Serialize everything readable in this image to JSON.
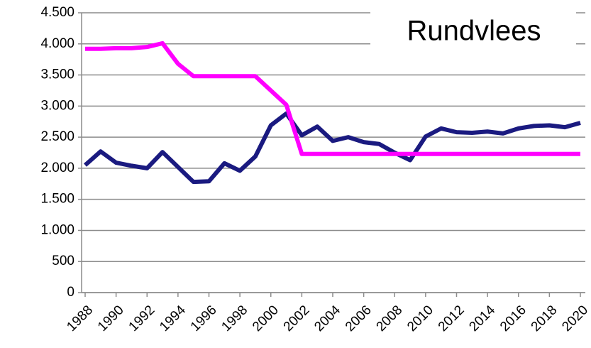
{
  "chart_data": {
    "type": "line",
    "title": "Rundvlees",
    "x": [
      1988,
      1989,
      1990,
      1991,
      1992,
      1993,
      1994,
      1995,
      1996,
      1997,
      1998,
      1999,
      2000,
      2001,
      2002,
      2003,
      2004,
      2005,
      2006,
      2007,
      2008,
      2009,
      2010,
      2011,
      2012,
      2013,
      2014,
      2015,
      2016,
      2017,
      2018,
      2019,
      2020
    ],
    "series": [
      {
        "color": "#1a1a80",
        "values": [
          2050,
          2270,
          2090,
          2040,
          2000,
          2260,
          2020,
          1780,
          1790,
          2080,
          1960,
          2190,
          2690,
          2880,
          2530,
          2670,
          2440,
          2500,
          2420,
          2390,
          2250,
          2130,
          2510,
          2640,
          2580,
          2570,
          2590,
          2560,
          2640,
          2680,
          2690,
          2660,
          2730
        ]
      },
      {
        "color": "#ff00ff",
        "values": [
          3920,
          3920,
          3930,
          3930,
          3950,
          4010,
          3680,
          3480,
          3480,
          3480,
          3480,
          3480,
          3250,
          3020,
          2230,
          2230,
          2230,
          2230,
          2230,
          2230,
          2230,
          2230,
          2230,
          2230,
          2230,
          2230,
          2230,
          2230,
          2230,
          2230,
          2230,
          2230,
          2230
        ]
      }
    ],
    "xlim": [
      1988,
      2020
    ],
    "xticks": [
      1988,
      1990,
      1992,
      1994,
      1996,
      1998,
      2000,
      2002,
      2004,
      2006,
      2008,
      2010,
      2012,
      2014,
      2016,
      2018,
      2020
    ],
    "ylim": [
      0,
      4500
    ],
    "yticks": [
      0,
      500,
      {
        "value": 1000,
        "label": "1.000"
      },
      {
        "value": 1500,
        "label": "1.500"
      },
      {
        "value": 2000,
        "label": "2.000"
      },
      {
        "value": 2500,
        "label": "2.500"
      },
      {
        "value": 3000,
        "label": "3.000"
      },
      {
        "value": 3500,
        "label": "3.500"
      },
      {
        "value": 4000,
        "label": "4.000"
      },
      {
        "value": 4500,
        "label": "4.500"
      }
    ],
    "grid": true
  }
}
